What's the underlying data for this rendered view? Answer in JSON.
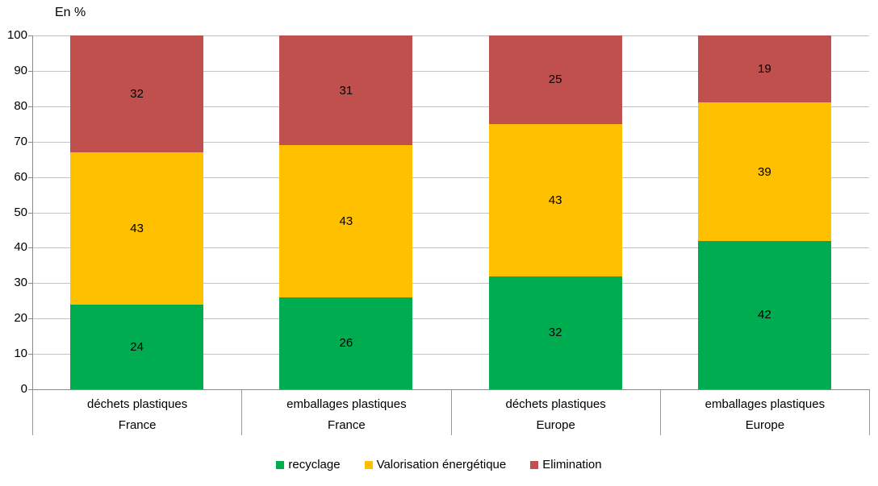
{
  "chart_data": {
    "type": "bar",
    "stacked": true,
    "title": "En %",
    "categories": [
      {
        "label": "déchets plastiques",
        "group": "France"
      },
      {
        "label": "emballages plastiques",
        "group": "France"
      },
      {
        "label": "déchets plastiques",
        "group": "Europe"
      },
      {
        "label": "emballages plastiques",
        "group": "Europe"
      }
    ],
    "series": [
      {
        "name": "recyclage",
        "color": "#00AC50",
        "values": [
          24,
          26,
          32,
          42
        ]
      },
      {
        "name": "Valorisation énergétique",
        "color": "#FFC000",
        "values": [
          43,
          43,
          43,
          39
        ]
      },
      {
        "name": "Elimination",
        "color": "#C0504D",
        "values": [
          32,
          31,
          25,
          19
        ]
      }
    ],
    "ylim": [
      0,
      100
    ],
    "yticks": [
      0,
      10,
      20,
      30,
      40,
      50,
      60,
      70,
      80,
      90,
      100
    ],
    "grid": true,
    "legend_position": "bottom",
    "colors": {
      "gridline": "#c3c3c3",
      "axis": "#898989",
      "text": "#000000",
      "background": "#ffffff"
    }
  }
}
